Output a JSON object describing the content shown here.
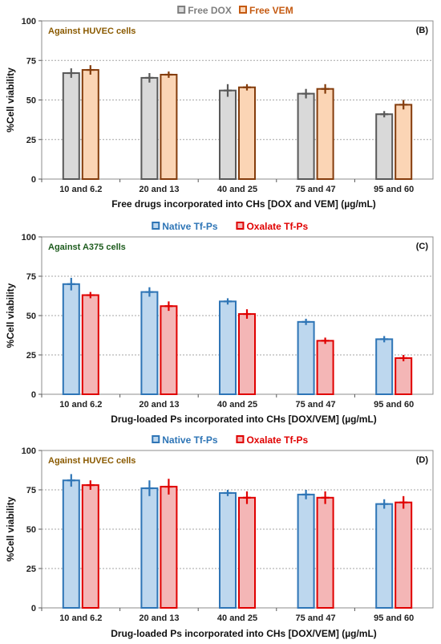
{
  "chart_data": [
    {
      "type": "bar",
      "panel_label": "(B)",
      "annotation": "Against HUVEC cells",
      "annotation_color": "#8a5a00",
      "categories": [
        "10 and 6.2",
        "20 and 13",
        "40 and 25",
        "75 and 47",
        "95 and 60"
      ],
      "series": [
        {
          "name": "Free DOX",
          "values": [
            67,
            64,
            56,
            54,
            41
          ],
          "errors": [
            3,
            3,
            4,
            3,
            2
          ],
          "fill": "#d9d9d9",
          "stroke": "#595959",
          "legend_color": "#7f7f7f"
        },
        {
          "name": "Free VEM",
          "values": [
            69,
            66,
            58,
            57,
            47
          ],
          "errors": [
            3,
            2,
            2,
            3,
            3
          ],
          "fill": "#fbd5b5",
          "stroke": "#843c0c",
          "legend_color": "#c55a11"
        }
      ],
      "xlabel": "Free drugs incorporated into CHs [DOX and VEM] (µg/mL)",
      "ylabel": "%Cell viability",
      "ylim": [
        0,
        100
      ],
      "yticks": [
        0,
        25,
        50,
        75,
        100
      ],
      "grid": true,
      "legend_position": "top-center"
    },
    {
      "type": "bar",
      "panel_label": "(C)",
      "annotation": "Against A375 cells",
      "annotation_color": "#1e5c1e",
      "categories": [
        "10 and 6.2",
        "20 and 13",
        "40 and 25",
        "75 and 47",
        "95 and 60"
      ],
      "series": [
        {
          "name": "Native Tf-Ps",
          "values": [
            70,
            65,
            59,
            46,
            35
          ],
          "errors": [
            4,
            3,
            2,
            2,
            2
          ],
          "fill": "#bdd7ee",
          "stroke": "#2e75b6",
          "legend_color": "#2e75b6"
        },
        {
          "name": "Oxalate Tf-Ps",
          "values": [
            63,
            56,
            51,
            34,
            23
          ],
          "errors": [
            2,
            3,
            3,
            2,
            2
          ],
          "fill": "#f4b6b6",
          "stroke": "#e00000",
          "legend_color": "#e00000"
        }
      ],
      "xlabel": "Drug-loaded Ps incorporated into CHs [DOX/VEM] (µg/mL)",
      "ylabel": "%Cell viability",
      "ylim": [
        0,
        100
      ],
      "yticks": [
        0,
        25,
        50,
        75,
        100
      ],
      "grid": true,
      "legend_position": "top-center"
    },
    {
      "type": "bar",
      "panel_label": "(D)",
      "annotation": "Against HUVEC cells",
      "annotation_color": "#8a5a00",
      "categories": [
        "10 and 6.2",
        "20 and 13",
        "40 and 25",
        "75 and 47",
        "95 and 60"
      ],
      "series": [
        {
          "name": "Native Tf-Ps",
          "values": [
            81,
            76,
            73,
            72,
            66
          ],
          "errors": [
            4,
            5,
            2,
            3,
            3
          ],
          "fill": "#bdd7ee",
          "stroke": "#2e75b6",
          "legend_color": "#2e75b6"
        },
        {
          "name": "Oxalate Tf-Ps",
          "values": [
            78,
            77,
            70,
            70,
            67
          ],
          "errors": [
            3,
            5,
            4,
            4,
            4
          ],
          "fill": "#f4b6b6",
          "stroke": "#e00000",
          "legend_color": "#e00000"
        }
      ],
      "xlabel": "Drug-loaded Ps incorporated into CHs [DOX/VEM] (µg/mL)",
      "ylabel": "%Cell viability",
      "ylim": [
        0,
        100
      ],
      "yticks": [
        0,
        25,
        50,
        75,
        100
      ],
      "grid": true,
      "legend_position": "top-center"
    }
  ]
}
